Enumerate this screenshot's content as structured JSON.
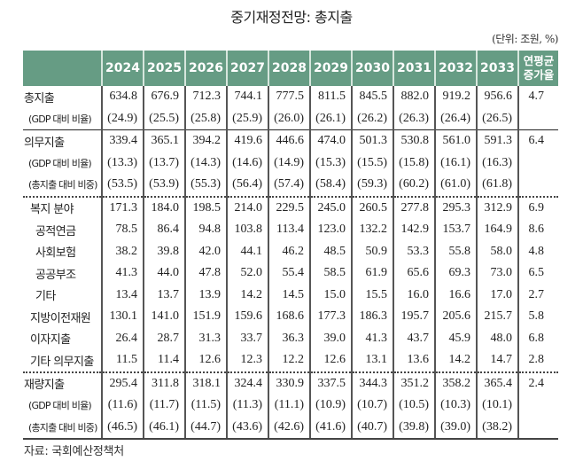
{
  "title": "중기재정전망: 총지출",
  "unit": "(단위: 조원, %)",
  "header": {
    "years": [
      "2024",
      "2025",
      "2026",
      "2027",
      "2028",
      "2029",
      "2030",
      "2031",
      "2032",
      "2033"
    ],
    "rate_label_line1": "연평균",
    "rate_label_line2": "증가율"
  },
  "colors": {
    "header_bg": "#669c84",
    "header_text": "#ffffff"
  },
  "rows": [
    {
      "label": "총지출",
      "indent": 0,
      "small": false,
      "values": [
        "634.8",
        "676.9",
        "712.3",
        "744.1",
        "777.5",
        "811.5",
        "845.5",
        "882.0",
        "919.2",
        "956.6"
      ],
      "rate": "4.7"
    },
    {
      "label": "(GDP 대비 비율)",
      "indent": 1,
      "small": true,
      "values": [
        "(24.9)",
        "(25.5)",
        "(25.8)",
        "(25.9)",
        "(26.0)",
        "(26.1)",
        "(26.2)",
        "(26.3)",
        "(26.4)",
        "(26.5)"
      ],
      "rate": "",
      "border": "solid"
    },
    {
      "label": "의무지출",
      "indent": 0,
      "small": false,
      "values": [
        "339.4",
        "365.1",
        "394.2",
        "419.6",
        "446.6",
        "474.0",
        "501.3",
        "530.8",
        "561.0",
        "591.3"
      ],
      "rate": "6.4"
    },
    {
      "label": "(GDP 대비 비율)",
      "indent": 1,
      "small": true,
      "values": [
        "(13.3)",
        "(13.7)",
        "(14.3)",
        "(14.6)",
        "(14.9)",
        "(15.3)",
        "(15.5)",
        "(15.8)",
        "(16.1)",
        "(16.3)"
      ],
      "rate": ""
    },
    {
      "label": "(총지출 대비 비중)",
      "indent": 1,
      "small": true,
      "values": [
        "(53.5)",
        "(53.9)",
        "(55.3)",
        "(56.4)",
        "(57.4)",
        "(58.4)",
        "(59.3)",
        "(60.2)",
        "(61.0)",
        "(61.8)"
      ],
      "rate": "",
      "border": "dotted"
    },
    {
      "label": "복지 분야",
      "indent": 2,
      "small": false,
      "values": [
        "171.3",
        "184.0",
        "198.5",
        "214.0",
        "229.5",
        "245.0",
        "260.5",
        "277.8",
        "295.3",
        "312.9"
      ],
      "rate": "6.9"
    },
    {
      "label": "공적연금",
      "indent": 3,
      "small": false,
      "values": [
        "78.5",
        "86.4",
        "94.8",
        "103.8",
        "113.4",
        "123.0",
        "132.2",
        "142.9",
        "153.7",
        "164.9"
      ],
      "rate": "8.6"
    },
    {
      "label": "사회보험",
      "indent": 3,
      "small": false,
      "values": [
        "38.2",
        "39.8",
        "42.0",
        "44.1",
        "46.2",
        "48.5",
        "50.9",
        "53.3",
        "55.8",
        "58.0"
      ],
      "rate": "4.8"
    },
    {
      "label": "공공부조",
      "indent": 3,
      "small": false,
      "values": [
        "41.3",
        "44.0",
        "47.8",
        "52.0",
        "55.4",
        "58.5",
        "61.9",
        "65.6",
        "69.3",
        "73.0"
      ],
      "rate": "6.5"
    },
    {
      "label": "기타",
      "indent": 3,
      "small": false,
      "values": [
        "13.4",
        "13.7",
        "13.9",
        "14.2",
        "14.5",
        "15.0",
        "15.5",
        "16.0",
        "16.6",
        "17.0"
      ],
      "rate": "2.7"
    },
    {
      "label": "지방이전재원",
      "indent": 2,
      "small": false,
      "values": [
        "130.1",
        "141.0",
        "151.9",
        "159.6",
        "168.6",
        "177.3",
        "186.3",
        "195.7",
        "205.6",
        "215.7"
      ],
      "rate": "5.8"
    },
    {
      "label": "이자지출",
      "indent": 2,
      "small": false,
      "values": [
        "26.4",
        "28.7",
        "31.3",
        "33.7",
        "36.3",
        "39.0",
        "41.3",
        "43.7",
        "45.9",
        "48.0"
      ],
      "rate": "6.8"
    },
    {
      "label": "기타 의무지출",
      "indent": 2,
      "small": false,
      "values": [
        "11.5",
        "11.4",
        "12.6",
        "12.3",
        "12.2",
        "12.6",
        "13.1",
        "13.6",
        "14.2",
        "14.7"
      ],
      "rate": "2.8",
      "border": "dotted"
    },
    {
      "label": "재량지출",
      "indent": 0,
      "small": false,
      "values": [
        "295.4",
        "311.8",
        "318.1",
        "324.4",
        "330.9",
        "337.5",
        "344.3",
        "351.2",
        "358.2",
        "365.4"
      ],
      "rate": "2.4"
    },
    {
      "label": "(GDP 대비 비율)",
      "indent": 1,
      "small": true,
      "values": [
        "(11.6)",
        "(11.7)",
        "(11.5)",
        "(11.3)",
        "(11.1)",
        "(10.9)",
        "(10.7)",
        "(10.5)",
        "(10.3)",
        "(10.1)"
      ],
      "rate": ""
    },
    {
      "label": "(총지출 대비 비중)",
      "indent": 1,
      "small": true,
      "values": [
        "(46.5)",
        "(46.1)",
        "(44.7)",
        "(43.6)",
        "(42.6)",
        "(41.6)",
        "(40.7)",
        "(39.8)",
        "(39.0)",
        "(38.2)"
      ],
      "rate": "",
      "border": "last"
    }
  ],
  "source": "자료: 국회예산정책처"
}
